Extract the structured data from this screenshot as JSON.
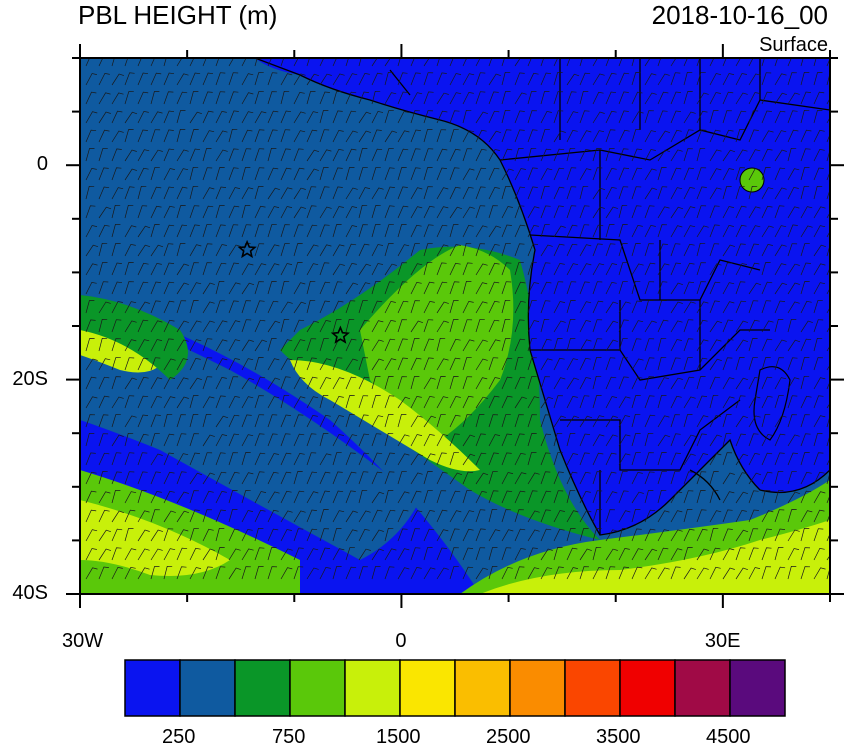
{
  "title": "PBL HEIGHT (m)",
  "date": "2018-10-16_00",
  "level": "Surface",
  "map": {
    "lon_range": [
      -30,
      40
    ],
    "lat_range": [
      -40,
      10
    ],
    "lon_ticks": [
      {
        "value": -30,
        "label": "30W"
      },
      {
        "value": 0,
        "label": "0"
      },
      {
        "value": 30,
        "label": "30E"
      }
    ],
    "lat_ticks": [
      {
        "value": 0,
        "label": "0"
      },
      {
        "value": -20,
        "label": "20S"
      },
      {
        "value": -40,
        "label": "40S"
      }
    ],
    "markers": [
      {
        "name": "star-marker-ascension",
        "lon": -14.4,
        "lat": -7.9
      },
      {
        "name": "star-marker-st-helena",
        "lon": -5.7,
        "lat": -15.9
      }
    ]
  },
  "colorbar": {
    "colors": [
      "#0a14f0",
      "#0f5aa0",
      "#0a9628",
      "#5ac80a",
      "#c8f00a",
      "#fae600",
      "#fabe00",
      "#fa8c00",
      "#fa4600",
      "#f00000",
      "#a00a46",
      "#5a0a7d"
    ],
    "labels": [
      "250",
      "750",
      "1500",
      "2500",
      "3500",
      "4500"
    ]
  }
}
